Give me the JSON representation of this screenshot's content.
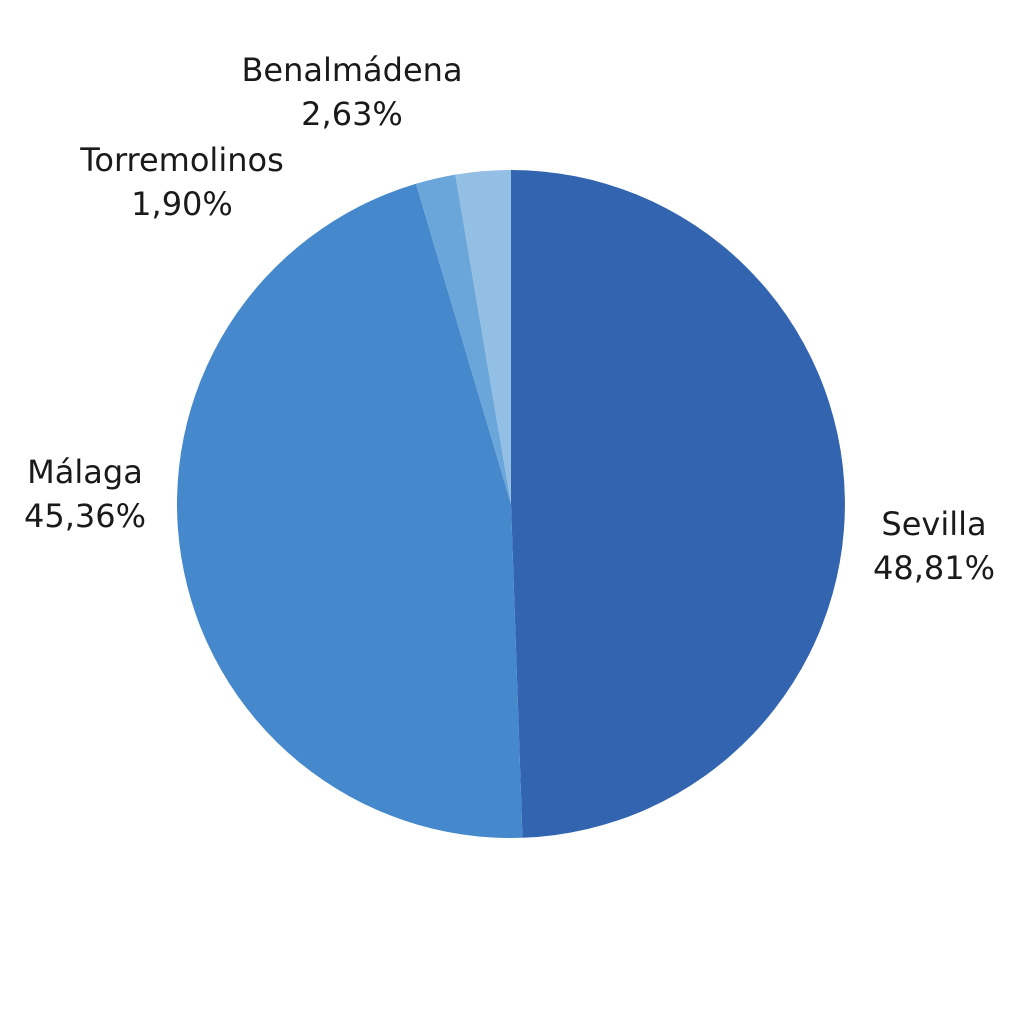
{
  "chart_data": {
    "type": "pie",
    "title": "",
    "legend": "none",
    "slices": [
      {
        "label": "Sevilla",
        "value": 48.81,
        "display": "48,81%",
        "color": "#3264b0"
      },
      {
        "label": "Málaga",
        "value": 45.36,
        "display": "45,36%",
        "color": "#4589cc"
      },
      {
        "label": "Torremolinos",
        "value": 1.9,
        "display": "1,90%",
        "color": "#6aa6da"
      },
      {
        "label": "Benalmádena",
        "value": 2.63,
        "display": "2,63%",
        "color": "#93bfe5"
      }
    ]
  }
}
